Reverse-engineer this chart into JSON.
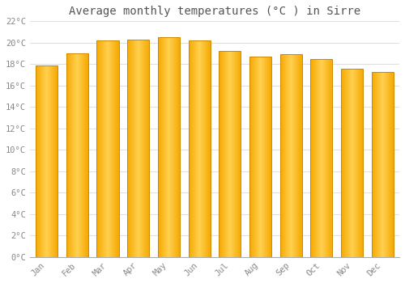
{
  "title": "Average monthly temperatures (°C ) in Sirre",
  "months": [
    "Jan",
    "Feb",
    "Mar",
    "Apr",
    "May",
    "Jun",
    "Jul",
    "Aug",
    "Sep",
    "Oct",
    "Nov",
    "Dec"
  ],
  "values": [
    17.9,
    19.0,
    20.2,
    20.3,
    20.5,
    20.2,
    19.2,
    18.7,
    18.9,
    18.5,
    17.6,
    17.3
  ],
  "bar_color_left": "#F5A800",
  "bar_color_center": "#FFD050",
  "bar_color_right": "#F5A800",
  "bar_edge_color": "#CC8800",
  "ylim": [
    0,
    22
  ],
  "yticks": [
    0,
    2,
    4,
    6,
    8,
    10,
    12,
    14,
    16,
    18,
    20,
    22
  ],
  "ytick_labels": [
    "0°C",
    "2°C",
    "4°C",
    "6°C",
    "8°C",
    "10°C",
    "12°C",
    "14°C",
    "16°C",
    "18°C",
    "20°C",
    "22°C"
  ],
  "bg_color": "#ffffff",
  "plot_bg_color": "#ffffff",
  "grid_color": "#e0e0e0",
  "title_fontsize": 10,
  "tick_fontsize": 7.5,
  "tick_color": "#888888",
  "label_color": "#888888",
  "font_family": "monospace",
  "bar_width": 0.72
}
